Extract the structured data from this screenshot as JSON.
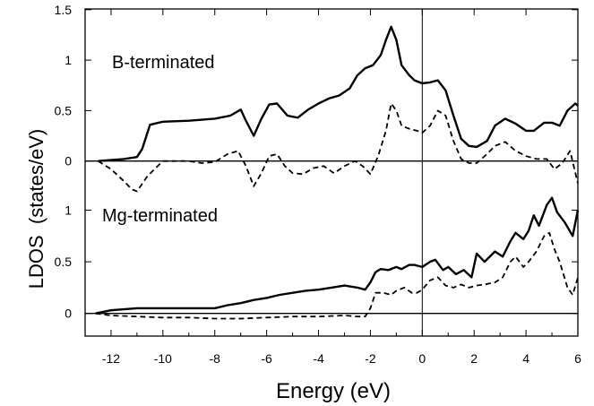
{
  "chart_data": [
    {
      "type": "line",
      "panel": "top",
      "annotation": "B-terminated",
      "xlim": [
        -13,
        6
      ],
      "ylim": [
        -0.35,
        1.5
      ],
      "yticks": [
        0,
        0.5,
        1,
        1.5
      ],
      "ytick_labels": [
        "0",
        "0.5",
        "1",
        "1.5"
      ],
      "series": [
        {
          "style": "solid",
          "x": [
            -12.5,
            -11.5,
            -11.0,
            -10.8,
            -10.5,
            -10.0,
            -9.0,
            -8.0,
            -7.4,
            -7.0,
            -6.8,
            -6.5,
            -6.2,
            -5.9,
            -5.6,
            -5.2,
            -4.8,
            -4.4,
            -4.0,
            -3.6,
            -3.2,
            -2.8,
            -2.5,
            -2.2,
            -1.9,
            -1.6,
            -1.4,
            -1.2,
            -1.0,
            -0.8,
            -0.5,
            -0.3,
            0.0,
            0.3,
            0.6,
            0.9,
            1.2,
            1.5,
            1.8,
            2.1,
            2.5,
            2.8,
            3.2,
            3.6,
            4.0,
            4.3,
            4.7,
            5.0,
            5.3,
            5.6,
            5.9,
            6.0
          ],
          "y": [
            0.0,
            0.02,
            0.04,
            0.12,
            0.36,
            0.39,
            0.4,
            0.42,
            0.45,
            0.51,
            0.4,
            0.25,
            0.42,
            0.56,
            0.57,
            0.45,
            0.43,
            0.51,
            0.57,
            0.62,
            0.65,
            0.72,
            0.85,
            0.92,
            0.95,
            1.05,
            1.2,
            1.33,
            1.2,
            0.95,
            0.85,
            0.8,
            0.77,
            0.78,
            0.8,
            0.7,
            0.45,
            0.22,
            0.15,
            0.14,
            0.2,
            0.35,
            0.42,
            0.37,
            0.3,
            0.3,
            0.38,
            0.38,
            0.35,
            0.5,
            0.57,
            0.55
          ]
        },
        {
          "style": "dashed",
          "x": [
            -12.5,
            -12.0,
            -11.5,
            -11.2,
            -11.0,
            -10.6,
            -10.0,
            -9.0,
            -8.5,
            -8.0,
            -7.5,
            -7.1,
            -6.8,
            -6.5,
            -6.2,
            -5.9,
            -5.6,
            -5.3,
            -5.0,
            -4.6,
            -4.2,
            -3.8,
            -3.4,
            -3.0,
            -2.6,
            -2.3,
            -2.0,
            -1.7,
            -1.4,
            -1.2,
            -1.0,
            -0.8,
            -0.5,
            -0.2,
            0.0,
            0.3,
            0.6,
            0.9,
            1.2,
            1.5,
            1.8,
            2.1,
            2.5,
            2.8,
            3.2,
            3.6,
            4.0,
            4.4,
            4.8,
            5.1,
            5.4,
            5.7,
            6.0
          ],
          "y": [
            0.0,
            -0.08,
            -0.2,
            -0.28,
            -0.3,
            -0.15,
            0.0,
            0.0,
            -0.02,
            -0.01,
            0.07,
            0.1,
            -0.05,
            -0.25,
            -0.12,
            0.05,
            0.07,
            -0.05,
            -0.12,
            -0.13,
            -0.07,
            -0.05,
            -0.12,
            -0.05,
            0.0,
            -0.05,
            -0.13,
            0.05,
            0.3,
            0.57,
            0.5,
            0.35,
            0.32,
            0.3,
            0.28,
            0.35,
            0.5,
            0.45,
            0.2,
            0.02,
            -0.02,
            -0.02,
            0.07,
            0.15,
            0.19,
            0.1,
            0.05,
            0.02,
            0.02,
            -0.08,
            -0.02,
            0.1,
            -0.22
          ]
        }
      ]
    },
    {
      "type": "line",
      "panel": "bottom",
      "annotation": "Mg-terminated",
      "xlim": [
        -13,
        6
      ],
      "ylim": [
        -0.22,
        1.25
      ],
      "yticks": [
        0,
        0.5,
        1
      ],
      "ytick_labels": [
        "0",
        "0.5",
        "1"
      ],
      "xticks": [
        -12,
        -10,
        -8,
        -6,
        -4,
        -2,
        0,
        2,
        4,
        6
      ],
      "xtick_labels": [
        "-12",
        "-10",
        "-8",
        "-6",
        "-4",
        "-2",
        "0",
        "2",
        "4",
        "6"
      ],
      "xlabel": "Energy (eV)",
      "ylabel": "LDOS  (states/eV)",
      "series": [
        {
          "style": "solid",
          "x": [
            -12.6,
            -12.0,
            -11.5,
            -11.0,
            -10.0,
            -9.0,
            -8.0,
            -7.5,
            -7.0,
            -6.5,
            -6.0,
            -5.5,
            -5.0,
            -4.5,
            -4.0,
            -3.5,
            -3.0,
            -2.5,
            -2.2,
            -2.0,
            -1.8,
            -1.6,
            -1.3,
            -1.0,
            -0.8,
            -0.5,
            -0.3,
            0.0,
            0.3,
            0.5,
            0.8,
            1.0,
            1.3,
            1.6,
            1.9,
            2.1,
            2.4,
            2.8,
            3.1,
            3.4,
            3.6,
            3.9,
            4.1,
            4.3,
            4.5,
            4.8,
            5.0,
            5.2,
            5.5,
            5.8,
            6.0
          ],
          "y": [
            0.0,
            0.03,
            0.04,
            0.05,
            0.05,
            0.05,
            0.05,
            0.08,
            0.1,
            0.13,
            0.15,
            0.18,
            0.2,
            0.22,
            0.23,
            0.25,
            0.27,
            0.25,
            0.23,
            0.3,
            0.4,
            0.43,
            0.42,
            0.45,
            0.43,
            0.47,
            0.47,
            0.45,
            0.5,
            0.52,
            0.42,
            0.45,
            0.38,
            0.42,
            0.35,
            0.58,
            0.5,
            0.6,
            0.55,
            0.7,
            0.78,
            0.72,
            0.8,
            0.95,
            0.85,
            1.05,
            1.12,
            0.98,
            0.88,
            0.75,
            1.0
          ]
        },
        {
          "style": "dashed",
          "x": [
            -12.6,
            -12.0,
            -11.0,
            -10.0,
            -9.0,
            -8.0,
            -7.0,
            -6.0,
            -5.0,
            -4.0,
            -3.0,
            -2.5,
            -2.2,
            -2.0,
            -1.8,
            -1.5,
            -1.2,
            -1.0,
            -0.7,
            -0.4,
            -0.2,
            0.0,
            0.3,
            0.6,
            0.9,
            1.2,
            1.5,
            1.8,
            2.1,
            2.4,
            2.8,
            3.1,
            3.4,
            3.6,
            3.9,
            4.1,
            4.4,
            4.7,
            4.9,
            5.1,
            5.3,
            5.6,
            5.8,
            6.0
          ],
          "y": [
            0.0,
            -0.02,
            -0.03,
            -0.04,
            -0.04,
            -0.05,
            -0.05,
            -0.04,
            -0.03,
            -0.03,
            -0.02,
            -0.03,
            -0.03,
            0.05,
            0.2,
            0.2,
            0.18,
            0.22,
            0.25,
            0.2,
            0.2,
            0.23,
            0.32,
            0.35,
            0.27,
            0.25,
            0.28,
            0.25,
            0.27,
            0.28,
            0.3,
            0.35,
            0.5,
            0.55,
            0.45,
            0.5,
            0.6,
            0.75,
            0.78,
            0.62,
            0.5,
            0.25,
            0.18,
            0.35
          ]
        }
      ]
    }
  ]
}
